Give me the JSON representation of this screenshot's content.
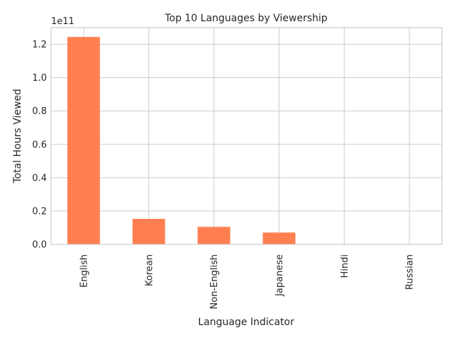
{
  "chart_data": {
    "type": "bar",
    "title": "Top 10 Languages by Viewership",
    "xlabel": "Language Indicator",
    "ylabel": "Total Hours Viewed",
    "offset_text": "1e11",
    "categories": [
      "English",
      "Korean",
      "Non-English",
      "Japanese",
      "Hindi",
      "Russian"
    ],
    "values": [
      124400000000,
      15300000000,
      10500000000,
      7100000000,
      100000000,
      30000000
    ],
    "ylim": [
      0,
      130000000000
    ],
    "yticks": [
      0,
      20000000000,
      40000000000,
      60000000000,
      80000000000,
      100000000000,
      120000000000
    ],
    "ytick_labels": [
      "0.0",
      "0.2",
      "0.4",
      "0.6",
      "0.8",
      "1.0",
      "1.2"
    ],
    "grid": true,
    "bar_color": "#ff7f50"
  }
}
